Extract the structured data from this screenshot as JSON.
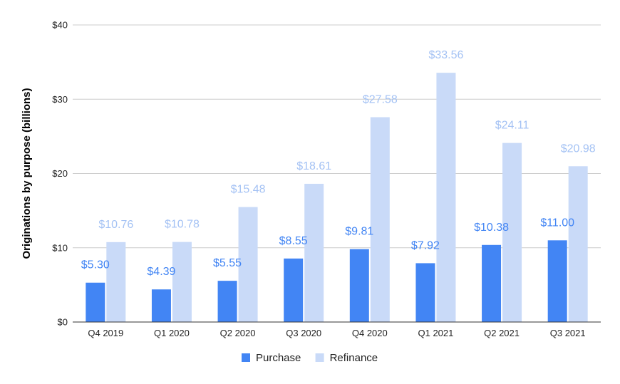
{
  "chart_data": {
    "type": "bar",
    "ylabel": "Originations by purpose (billions)",
    "xlabel": "",
    "ylim": [
      0,
      40
    ],
    "y_ticks": [
      0,
      10,
      20,
      30,
      40
    ],
    "y_tick_labels": [
      "$0",
      "$10",
      "$20",
      "$30",
      "$40"
    ],
    "grid": true,
    "legend_position": "bottom",
    "categories": [
      "Q4 2019",
      "Q1 2020",
      "Q2 2020",
      "Q3 2020",
      "Q4 2020",
      "Q1 2021",
      "Q2 2021",
      "Q3 2021"
    ],
    "series": [
      {
        "name": "Purchase",
        "color": "#4285f4",
        "values": [
          5.3,
          4.39,
          5.55,
          8.55,
          9.81,
          7.92,
          10.38,
          11.0
        ],
        "labels": [
          "$5.30",
          "$4.39",
          "$5.55",
          "$8.55",
          "$9.81",
          "$7.92",
          "$10.38",
          "$11.00"
        ]
      },
      {
        "name": "Refinance",
        "color": "#c9daf8",
        "label_color": "#a4c2f4",
        "values": [
          10.76,
          10.78,
          15.48,
          18.61,
          27.58,
          33.56,
          24.11,
          20.98
        ],
        "labels": [
          "$10.76",
          "$10.78",
          "$15.48",
          "$18.61",
          "$27.58",
          "$33.56",
          "$24.11",
          "$20.98"
        ]
      }
    ]
  }
}
